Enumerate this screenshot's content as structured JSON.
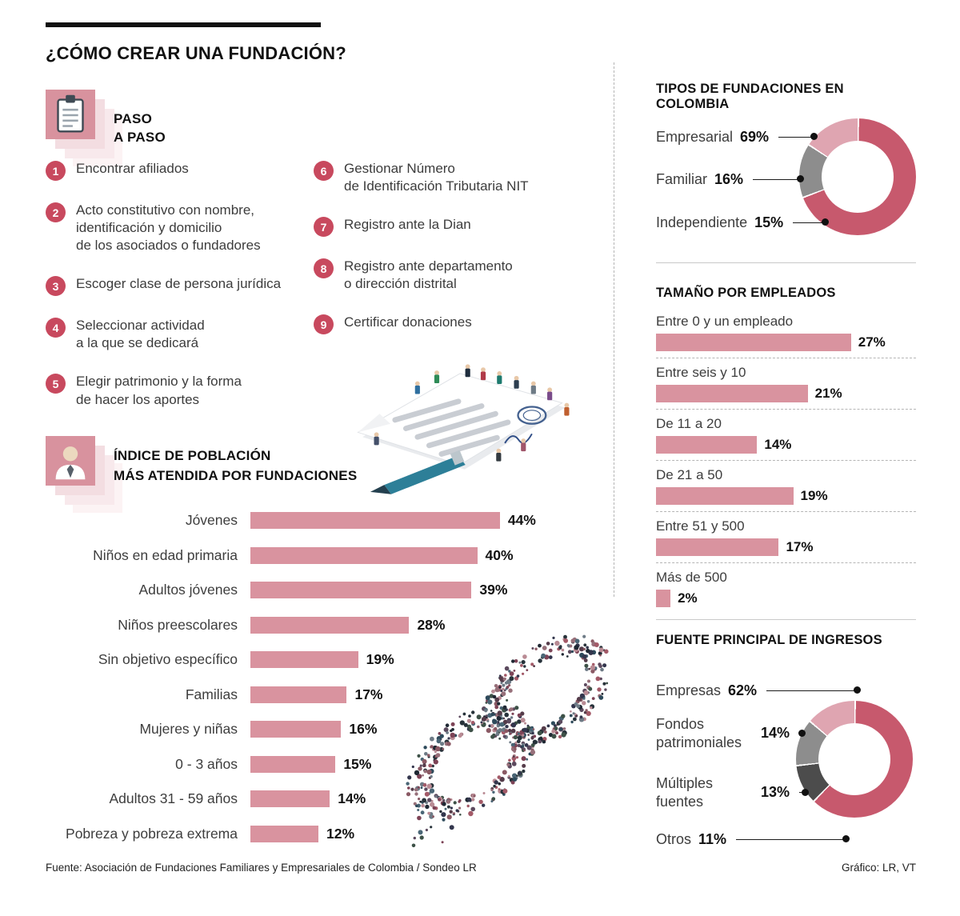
{
  "meta": {
    "title": "¿CÓMO CREAR UNA FUNDACIÓN?",
    "source": "Fuente: Asociación de Fundaciones Familiares y Empresariales de Colombia / Sondeo LR",
    "credit": "Gráfico: LR, VT"
  },
  "colors": {
    "bar": "#d9939f",
    "badge": "#c8495e",
    "tile": "#d8929e",
    "rose": "#c7596d",
    "light_pink": "#dfa5b1",
    "gray": "#8d8d8d",
    "dark_gray": "#4c4c4c"
  },
  "steps": {
    "heading": "PASO\nA PASO",
    "items": [
      {
        "num": "1",
        "text": "Encontrar afiliados"
      },
      {
        "num": "2",
        "text": "Acto constitutivo con nombre,\nidentificación y domicilio\nde los asociados o fundadores"
      },
      {
        "num": "3",
        "text": "Escoger clase de persona jurídica"
      },
      {
        "num": "4",
        "text": "Seleccionar actividad\na la que se dedicará"
      },
      {
        "num": "5",
        "text": "Elegir patrimonio y la forma\nde hacer los aportes"
      },
      {
        "num": "6",
        "text": "Gestionar Número\nde Identificación Tributaria NIT"
      },
      {
        "num": "7",
        "text": "Registro ante la Dian"
      },
      {
        "num": "8",
        "text": "Registro ante departamento\no dirección distrital"
      },
      {
        "num": "9",
        "text": "Certificar donaciones"
      }
    ]
  },
  "chart_data": [
    {
      "id": "poblacion",
      "type": "bar",
      "orientation": "horizontal",
      "title": "ÍNDICE DE POBLACIÓN\nMÁS ATENDIDA POR FUNDACIONES",
      "categories": [
        "Jóvenes",
        "Niños en edad primaria",
        "Adultos jóvenes",
        "Niños preescolares",
        "Sin objetivo específico",
        "Familias",
        "Mujeres y niñas",
        "0 - 3 años",
        "Adultos 31 - 59 años",
        "Pobreza y pobreza extrema"
      ],
      "values": [
        44,
        40,
        39,
        28,
        19,
        17,
        16,
        15,
        14,
        12
      ],
      "unit": "%",
      "xlim": [
        0,
        57
      ],
      "bar_color": "#d9939f",
      "grid": false
    },
    {
      "id": "tipos",
      "type": "pie",
      "donut": true,
      "title": "TIPOS DE FUNDACIONES EN COLOMBIA",
      "slices": [
        {
          "label": "Empresarial",
          "value": 69,
          "color": "#c7596d"
        },
        {
          "label": "Familiar",
          "value": 16,
          "color": "#dfa5b1"
        },
        {
          "label": "Independiente",
          "value": 15,
          "color": "#8d8d8d"
        }
      ],
      "draw_order": [
        0,
        2,
        1
      ],
      "legend_position": "left"
    },
    {
      "id": "empleados",
      "type": "bar",
      "orientation": "horizontal",
      "title": "TAMAÑO POR EMPLEADOS",
      "categories": [
        "Entre 0 y un empleado",
        "Entre seis y 10",
        "De 11 a 20",
        "De 21 a 50",
        "Entre 51 y 500",
        "Más de 500"
      ],
      "values": [
        27,
        21,
        14,
        19,
        17,
        2
      ],
      "unit": "%",
      "xlim": [
        0,
        36
      ],
      "bar_color": "#d9939f",
      "grid": false
    },
    {
      "id": "ingresos",
      "type": "pie",
      "donut": true,
      "title": "FUENTE PRINCIPAL DE INGRESOS",
      "slices": [
        {
          "label": "Empresas",
          "value": 62,
          "color": "#c7596d"
        },
        {
          "label": "Fondos patrimoniales",
          "value": 14,
          "color": "#dfa5b1"
        },
        {
          "label": "Múltiples fuentes",
          "value": 13,
          "color": "#8d8d8d"
        },
        {
          "label": "Otros",
          "value": 11,
          "color": "#4c4c4c"
        }
      ],
      "draw_order": [
        0,
        3,
        2,
        1
      ],
      "legend_position": "left"
    }
  ],
  "illustrations": {
    "chain_palette": [
      "#33364d",
      "#553c4a",
      "#7d4356",
      "#a35a68",
      "#2e4a5b",
      "#4a6676",
      "#5c4a5e",
      "#27323a",
      "#6e7b86",
      "#8a5964",
      "#3d5147",
      "#97707a",
      "#1f2833",
      "#b98b94"
    ]
  }
}
